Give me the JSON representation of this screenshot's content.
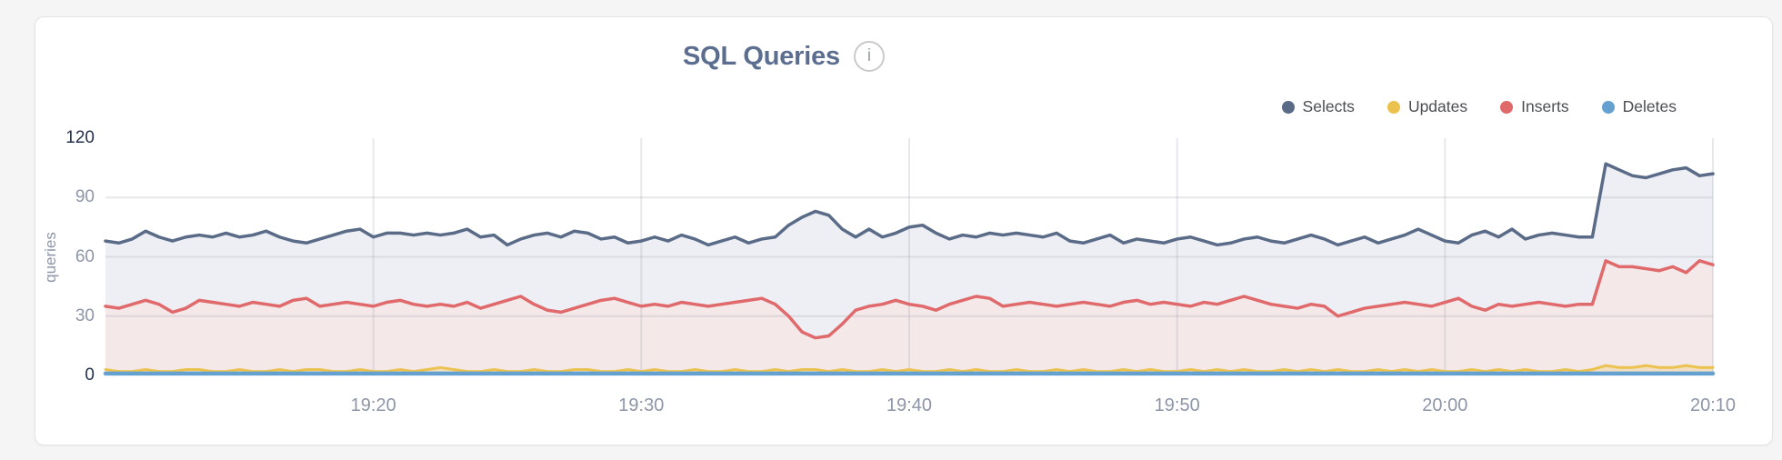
{
  "header": {
    "title": "SQL Queries",
    "info_icon_glyph": "i"
  },
  "legend": [
    {
      "label": "Selects",
      "color": "#5a6b87"
    },
    {
      "label": "Updates",
      "color": "#ecc24f"
    },
    {
      "label": "Inserts",
      "color": "#e0696b"
    },
    {
      "label": "Deletes",
      "color": "#64a0d0"
    }
  ],
  "colors": {
    "card_background": "#ffffff",
    "page_background": "#f5f5f6",
    "title": "#5c6e90",
    "axis_label_strong": "#22304e",
    "axis_label_light": "#8d95a7",
    "legend_text": "#4b4e54"
  },
  "chart_data": {
    "type": "area",
    "title": "SQL Queries",
    "ylabel": "queries",
    "xlabel": "",
    "ylim": [
      0,
      120
    ],
    "x_start": "19:10",
    "x_end": "20:10",
    "interval_seconds": 30,
    "x_tick_labels": [
      "19:20",
      "19:30",
      "19:40",
      "19:50",
      "20:00",
      "20:10"
    ],
    "y_tick_labels": [
      "120",
      "90",
      "60",
      "30",
      "0"
    ],
    "y_gridlines": [
      90,
      60,
      30
    ],
    "grid_color": "rgba(144,150,164,0.22)",
    "legend_position": "top-right",
    "series": [
      {
        "name": "Selects",
        "color": "#5a6b87",
        "fill": "#edeff4",
        "width": 3.5,
        "values": [
          68,
          67,
          69,
          73,
          70,
          68,
          70,
          71,
          70,
          72,
          70,
          71,
          73,
          70,
          68,
          67,
          69,
          71,
          73,
          74,
          70,
          72,
          72,
          71,
          72,
          71,
          72,
          74,
          70,
          71,
          66,
          69,
          71,
          72,
          70,
          73,
          72,
          69,
          70,
          67,
          68,
          70,
          68,
          71,
          69,
          66,
          68,
          70,
          67,
          69,
          70,
          76,
          80,
          83,
          81,
          74,
          70,
          74,
          70,
          72,
          75,
          76,
          72,
          69,
          71,
          70,
          72,
          71,
          72,
          71,
          70,
          72,
          68,
          67,
          69,
          71,
          67,
          69,
          68,
          67,
          69,
          70,
          68,
          66,
          67,
          69,
          70,
          68,
          67,
          69,
          71,
          69,
          66,
          68,
          70,
          67,
          69,
          71,
          74,
          71,
          68,
          67,
          71,
          73,
          70,
          74,
          69,
          71,
          72,
          71,
          70,
          70,
          107,
          104,
          101,
          100,
          102,
          104,
          105,
          101,
          102
        ]
      },
      {
        "name": "Inserts",
        "color": "#e0696b",
        "fill": "#f4e8e9",
        "width": 3.5,
        "values": [
          35,
          34,
          36,
          38,
          36,
          32,
          34,
          38,
          37,
          36,
          35,
          37,
          36,
          35,
          38,
          39,
          35,
          36,
          37,
          36,
          35,
          37,
          38,
          36,
          35,
          36,
          35,
          37,
          34,
          36,
          38,
          40,
          36,
          33,
          32,
          34,
          36,
          38,
          39,
          37,
          35,
          36,
          35,
          37,
          36,
          35,
          36,
          37,
          38,
          39,
          36,
          30,
          22,
          19,
          20,
          26,
          33,
          35,
          36,
          38,
          36,
          35,
          33,
          36,
          38,
          40,
          39,
          35,
          36,
          37,
          36,
          35,
          36,
          37,
          36,
          35,
          37,
          38,
          36,
          37,
          36,
          35,
          37,
          36,
          38,
          40,
          38,
          36,
          35,
          34,
          36,
          35,
          30,
          32,
          34,
          35,
          36,
          37,
          36,
          35,
          37,
          39,
          35,
          33,
          36,
          35,
          36,
          37,
          36,
          35,
          36,
          36,
          58,
          55,
          55,
          54,
          53,
          55,
          52,
          58,
          56
        ]
      },
      {
        "name": "Updates",
        "color": "#ecc24f",
        "fill": "rgba(236,194,79,0.25)",
        "width": 3,
        "values": [
          3,
          2,
          2,
          3,
          2,
          2,
          3,
          3,
          2,
          2,
          3,
          2,
          2,
          3,
          2,
          3,
          3,
          2,
          2,
          3,
          2,
          2,
          3,
          2,
          3,
          4,
          3,
          2,
          2,
          3,
          2,
          2,
          3,
          2,
          2,
          3,
          3,
          2,
          2,
          3,
          2,
          3,
          2,
          2,
          3,
          2,
          2,
          3,
          2,
          2,
          3,
          2,
          3,
          3,
          2,
          3,
          2,
          2,
          3,
          2,
          3,
          2,
          2,
          3,
          2,
          3,
          2,
          2,
          3,
          2,
          2,
          3,
          2,
          3,
          2,
          2,
          3,
          2,
          3,
          2,
          2,
          3,
          2,
          3,
          2,
          3,
          2,
          2,
          3,
          2,
          3,
          2,
          3,
          2,
          2,
          3,
          2,
          3,
          2,
          3,
          2,
          2,
          3,
          2,
          3,
          2,
          3,
          2,
          2,
          3,
          2,
          3,
          5,
          4,
          4,
          5,
          4,
          4,
          5,
          4,
          4
        ]
      },
      {
        "name": "Deletes",
        "color": "#64a0d0",
        "fill": null,
        "width": 4.5,
        "values": [
          1,
          1,
          1,
          1,
          1,
          1,
          1,
          1,
          1,
          1,
          1,
          1,
          1,
          1,
          1,
          1,
          1,
          1,
          1,
          1,
          1,
          1,
          1,
          1,
          1,
          1,
          1,
          1,
          1,
          1,
          1,
          1,
          1,
          1,
          1,
          1,
          1,
          1,
          1,
          1,
          1,
          1,
          1,
          1,
          1,
          1,
          1,
          1,
          1,
          1,
          1,
          1,
          1,
          1,
          1,
          1,
          1,
          1,
          1,
          1,
          1,
          1,
          1,
          1,
          1,
          1,
          1,
          1,
          1,
          1,
          1,
          1,
          1,
          1,
          1,
          1,
          1,
          1,
          1,
          1,
          1,
          1,
          1,
          1,
          1,
          1,
          1,
          1,
          1,
          1,
          1,
          1,
          1,
          1,
          1,
          1,
          1,
          1,
          1,
          1,
          1,
          1,
          1,
          1,
          1,
          1,
          1,
          1,
          1,
          1,
          1,
          1,
          1,
          1,
          1,
          1,
          1,
          1,
          1,
          1,
          1
        ]
      }
    ]
  }
}
